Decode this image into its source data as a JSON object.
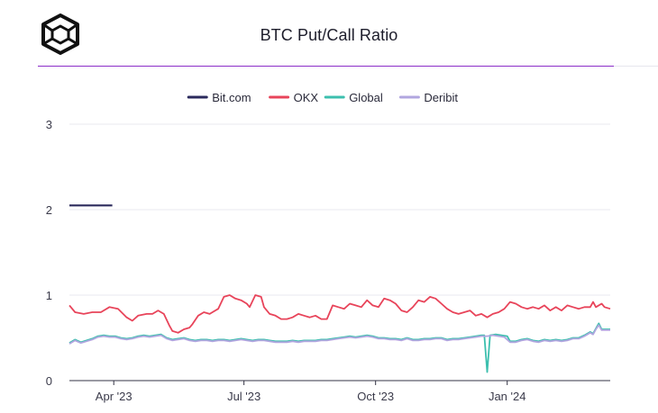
{
  "header": {
    "title": "BTC Put/Call Ratio",
    "logo_icon": "cube-logo-icon"
  },
  "chart_data": {
    "type": "line",
    "title": "BTC Put/Call Ratio",
    "xlabel": "",
    "ylabel": "",
    "ylim": [
      0,
      3
    ],
    "y_ticks": [
      0,
      1,
      2,
      3
    ],
    "y_tick_labels": [
      "0",
      "1",
      "2",
      "3"
    ],
    "x_range_days": [
      0,
      378
    ],
    "x_ticks": [
      {
        "day": 31,
        "label": "Apr '23"
      },
      {
        "day": 122,
        "label": "Jul '23"
      },
      {
        "day": 214,
        "label": "Oct '23"
      },
      {
        "day": 306,
        "label": "Jan '24"
      }
    ],
    "legend_position": "top-center",
    "series": [
      {
        "name": "Bit.com",
        "color": "#2b2a5c",
        "points": [
          [
            0,
            2.05
          ],
          [
            30,
            2.05
          ]
        ]
      },
      {
        "name": "OKX",
        "color": "#e8445a",
        "points": [
          [
            0,
            0.88
          ],
          [
            4,
            0.8
          ],
          [
            10,
            0.78
          ],
          [
            16,
            0.8
          ],
          [
            22,
            0.8
          ],
          [
            28,
            0.86
          ],
          [
            34,
            0.84
          ],
          [
            40,
            0.74
          ],
          [
            44,
            0.7
          ],
          [
            48,
            0.76
          ],
          [
            54,
            0.78
          ],
          [
            58,
            0.78
          ],
          [
            62,
            0.82
          ],
          [
            66,
            0.78
          ],
          [
            70,
            0.64
          ],
          [
            72,
            0.58
          ],
          [
            76,
            0.56
          ],
          [
            80,
            0.6
          ],
          [
            84,
            0.62
          ],
          [
            86,
            0.66
          ],
          [
            90,
            0.76
          ],
          [
            94,
            0.8
          ],
          [
            98,
            0.78
          ],
          [
            100,
            0.8
          ],
          [
            104,
            0.84
          ],
          [
            108,
            0.98
          ],
          [
            112,
            1.0
          ],
          [
            116,
            0.96
          ],
          [
            120,
            0.94
          ],
          [
            124,
            0.9
          ],
          [
            126,
            0.86
          ],
          [
            130,
            1.0
          ],
          [
            134,
            0.98
          ],
          [
            136,
            0.86
          ],
          [
            140,
            0.78
          ],
          [
            144,
            0.76
          ],
          [
            148,
            0.72
          ],
          [
            152,
            0.72
          ],
          [
            156,
            0.74
          ],
          [
            160,
            0.78
          ],
          [
            164,
            0.76
          ],
          [
            168,
            0.74
          ],
          [
            172,
            0.76
          ],
          [
            176,
            0.72
          ],
          [
            180,
            0.72
          ],
          [
            184,
            0.88
          ],
          [
            188,
            0.86
          ],
          [
            192,
            0.84
          ],
          [
            196,
            0.9
          ],
          [
            200,
            0.88
          ],
          [
            204,
            0.86
          ],
          [
            208,
            0.94
          ],
          [
            212,
            0.88
          ],
          [
            216,
            0.86
          ],
          [
            220,
            0.96
          ],
          [
            224,
            0.94
          ],
          [
            228,
            0.9
          ],
          [
            232,
            0.82
          ],
          [
            236,
            0.8
          ],
          [
            240,
            0.86
          ],
          [
            244,
            0.94
          ],
          [
            248,
            0.92
          ],
          [
            252,
            0.98
          ],
          [
            256,
            0.96
          ],
          [
            260,
            0.9
          ],
          [
            264,
            0.84
          ],
          [
            268,
            0.8
          ],
          [
            272,
            0.78
          ],
          [
            276,
            0.8
          ],
          [
            280,
            0.82
          ],
          [
            284,
            0.76
          ],
          [
            288,
            0.78
          ],
          [
            292,
            0.74
          ],
          [
            296,
            0.78
          ],
          [
            300,
            0.8
          ],
          [
            304,
            0.84
          ],
          [
            308,
            0.92
          ],
          [
            312,
            0.9
          ],
          [
            316,
            0.86
          ],
          [
            320,
            0.84
          ],
          [
            324,
            0.86
          ],
          [
            328,
            0.84
          ],
          [
            332,
            0.88
          ],
          [
            336,
            0.82
          ],
          [
            340,
            0.86
          ],
          [
            344,
            0.82
          ],
          [
            348,
            0.88
          ],
          [
            352,
            0.86
          ],
          [
            356,
            0.84
          ],
          [
            360,
            0.86
          ],
          [
            364,
            0.86
          ],
          [
            366,
            0.92
          ],
          [
            368,
            0.86
          ],
          [
            372,
            0.9
          ],
          [
            374,
            0.86
          ],
          [
            378,
            0.84
          ]
        ]
      },
      {
        "name": "Global",
        "color": "#3cbfae",
        "points": [
          [
            0,
            0.44
          ],
          [
            4,
            0.48
          ],
          [
            8,
            0.45
          ],
          [
            12,
            0.47
          ],
          [
            16,
            0.49
          ],
          [
            20,
            0.52
          ],
          [
            24,
            0.53
          ],
          [
            28,
            0.52
          ],
          [
            32,
            0.52
          ],
          [
            36,
            0.5
          ],
          [
            40,
            0.49
          ],
          [
            44,
            0.5
          ],
          [
            48,
            0.52
          ],
          [
            52,
            0.53
          ],
          [
            56,
            0.52
          ],
          [
            60,
            0.53
          ],
          [
            64,
            0.54
          ],
          [
            68,
            0.5
          ],
          [
            72,
            0.48
          ],
          [
            76,
            0.49
          ],
          [
            80,
            0.5
          ],
          [
            84,
            0.48
          ],
          [
            88,
            0.47
          ],
          [
            92,
            0.48
          ],
          [
            96,
            0.48
          ],
          [
            100,
            0.47
          ],
          [
            104,
            0.48
          ],
          [
            108,
            0.48
          ],
          [
            112,
            0.47
          ],
          [
            116,
            0.48
          ],
          [
            120,
            0.49
          ],
          [
            124,
            0.48
          ],
          [
            128,
            0.47
          ],
          [
            132,
            0.48
          ],
          [
            136,
            0.48
          ],
          [
            140,
            0.47
          ],
          [
            144,
            0.46
          ],
          [
            148,
            0.46
          ],
          [
            152,
            0.46
          ],
          [
            156,
            0.47
          ],
          [
            160,
            0.46
          ],
          [
            164,
            0.47
          ],
          [
            168,
            0.47
          ],
          [
            172,
            0.47
          ],
          [
            176,
            0.48
          ],
          [
            180,
            0.48
          ],
          [
            184,
            0.49
          ],
          [
            188,
            0.5
          ],
          [
            192,
            0.51
          ],
          [
            196,
            0.52
          ],
          [
            200,
            0.51
          ],
          [
            204,
            0.52
          ],
          [
            208,
            0.53
          ],
          [
            212,
            0.52
          ],
          [
            216,
            0.5
          ],
          [
            220,
            0.5
          ],
          [
            224,
            0.49
          ],
          [
            228,
            0.49
          ],
          [
            232,
            0.48
          ],
          [
            236,
            0.5
          ],
          [
            240,
            0.48
          ],
          [
            244,
            0.48
          ],
          [
            248,
            0.49
          ],
          [
            252,
            0.49
          ],
          [
            256,
            0.5
          ],
          [
            260,
            0.5
          ],
          [
            264,
            0.48
          ],
          [
            268,
            0.49
          ],
          [
            272,
            0.49
          ],
          [
            276,
            0.5
          ],
          [
            280,
            0.51
          ],
          [
            284,
            0.52
          ],
          [
            288,
            0.53
          ],
          [
            290,
            0.53
          ],
          [
            292,
            0.1
          ],
          [
            294,
            0.53
          ],
          [
            298,
            0.54
          ],
          [
            302,
            0.53
          ],
          [
            306,
            0.52
          ],
          [
            308,
            0.46
          ],
          [
            312,
            0.46
          ],
          [
            316,
            0.48
          ],
          [
            320,
            0.49
          ],
          [
            324,
            0.47
          ],
          [
            328,
            0.46
          ],
          [
            332,
            0.48
          ],
          [
            336,
            0.47
          ],
          [
            340,
            0.48
          ],
          [
            344,
            0.47
          ],
          [
            348,
            0.48
          ],
          [
            352,
            0.5
          ],
          [
            356,
            0.5
          ],
          [
            360,
            0.53
          ],
          [
            364,
            0.57
          ],
          [
            366,
            0.55
          ],
          [
            368,
            0.61
          ],
          [
            370,
            0.67
          ],
          [
            372,
            0.6
          ],
          [
            376,
            0.6
          ],
          [
            378,
            0.6
          ]
        ]
      },
      {
        "name": "Deribit",
        "color": "#b1a6df",
        "points": [
          [
            0,
            0.43
          ],
          [
            4,
            0.47
          ],
          [
            8,
            0.44
          ],
          [
            12,
            0.46
          ],
          [
            16,
            0.48
          ],
          [
            20,
            0.51
          ],
          [
            24,
            0.52
          ],
          [
            28,
            0.51
          ],
          [
            32,
            0.51
          ],
          [
            36,
            0.49
          ],
          [
            40,
            0.48
          ],
          [
            44,
            0.49
          ],
          [
            48,
            0.51
          ],
          [
            52,
            0.52
          ],
          [
            56,
            0.51
          ],
          [
            60,
            0.52
          ],
          [
            64,
            0.53
          ],
          [
            68,
            0.49
          ],
          [
            72,
            0.47
          ],
          [
            76,
            0.48
          ],
          [
            80,
            0.49
          ],
          [
            84,
            0.47
          ],
          [
            88,
            0.46
          ],
          [
            92,
            0.47
          ],
          [
            96,
            0.47
          ],
          [
            100,
            0.46
          ],
          [
            104,
            0.47
          ],
          [
            108,
            0.47
          ],
          [
            112,
            0.46
          ],
          [
            116,
            0.47
          ],
          [
            120,
            0.48
          ],
          [
            124,
            0.47
          ],
          [
            128,
            0.46
          ],
          [
            132,
            0.47
          ],
          [
            136,
            0.47
          ],
          [
            140,
            0.46
          ],
          [
            144,
            0.45
          ],
          [
            148,
            0.45
          ],
          [
            152,
            0.45
          ],
          [
            156,
            0.46
          ],
          [
            160,
            0.45
          ],
          [
            164,
            0.46
          ],
          [
            168,
            0.46
          ],
          [
            172,
            0.46
          ],
          [
            176,
            0.47
          ],
          [
            180,
            0.47
          ],
          [
            184,
            0.48
          ],
          [
            188,
            0.49
          ],
          [
            192,
            0.5
          ],
          [
            196,
            0.51
          ],
          [
            200,
            0.5
          ],
          [
            204,
            0.51
          ],
          [
            208,
            0.52
          ],
          [
            212,
            0.51
          ],
          [
            216,
            0.49
          ],
          [
            220,
            0.49
          ],
          [
            224,
            0.48
          ],
          [
            228,
            0.48
          ],
          [
            232,
            0.47
          ],
          [
            236,
            0.49
          ],
          [
            240,
            0.47
          ],
          [
            244,
            0.47
          ],
          [
            248,
            0.48
          ],
          [
            252,
            0.48
          ],
          [
            256,
            0.49
          ],
          [
            260,
            0.49
          ],
          [
            264,
            0.47
          ],
          [
            268,
            0.48
          ],
          [
            272,
            0.48
          ],
          [
            276,
            0.49
          ],
          [
            280,
            0.5
          ],
          [
            284,
            0.51
          ],
          [
            288,
            0.52
          ],
          [
            292,
            0.52
          ],
          [
            296,
            0.53
          ],
          [
            300,
            0.52
          ],
          [
            304,
            0.51
          ],
          [
            308,
            0.45
          ],
          [
            312,
            0.45
          ],
          [
            316,
            0.47
          ],
          [
            320,
            0.48
          ],
          [
            324,
            0.46
          ],
          [
            328,
            0.45
          ],
          [
            332,
            0.47
          ],
          [
            336,
            0.46
          ],
          [
            340,
            0.47
          ],
          [
            344,
            0.46
          ],
          [
            348,
            0.47
          ],
          [
            352,
            0.49
          ],
          [
            356,
            0.49
          ],
          [
            360,
            0.52
          ],
          [
            364,
            0.56
          ],
          [
            366,
            0.54
          ],
          [
            368,
            0.6
          ],
          [
            370,
            0.65
          ],
          [
            372,
            0.59
          ],
          [
            376,
            0.59
          ],
          [
            378,
            0.59
          ]
        ]
      }
    ]
  }
}
